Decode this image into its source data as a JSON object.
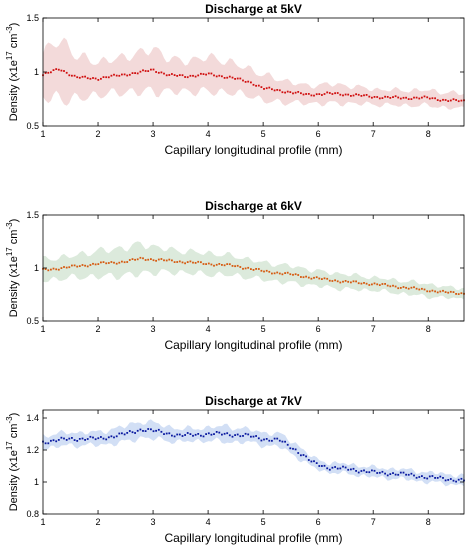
{
  "chart_data": [
    {
      "type": "line",
      "title": "Discharge at 5kV",
      "xlabel": "Capillary longitudinal profile (mm)",
      "ylabel": {
        "base": "Density (x1e",
        "exp1": "17",
        "mid": " cm",
        "exp2": "-3",
        "end": ")"
      },
      "xlim": [
        1,
        8.65
      ],
      "ylim": [
        0.5,
        1.5
      ],
      "xticks": [
        "1",
        "2",
        "3",
        "4",
        "5",
        "6",
        "7",
        "8"
      ],
      "yticks": [
        "0.5",
        "1",
        "1.5"
      ],
      "series": [
        {
          "line_color": "#d01010",
          "band_color": "#f2d6d6",
          "x": [
            1.0,
            1.3,
            1.6,
            2.0,
            2.4,
            2.8,
            3.0,
            3.3,
            3.6,
            4.0,
            4.4,
            4.8,
            5.0,
            5.4,
            5.8,
            6.2,
            6.6,
            7.0,
            7.5,
            8.0,
            8.3,
            8.65
          ],
          "y": [
            0.97,
            1.03,
            0.95,
            0.94,
            0.97,
            1.0,
            1.02,
            0.97,
            0.96,
            0.98,
            0.95,
            0.9,
            0.85,
            0.82,
            0.79,
            0.8,
            0.79,
            0.77,
            0.76,
            0.76,
            0.74,
            0.73
          ],
          "band_half_width": [
            0.2,
            0.28,
            0.2,
            0.15,
            0.16,
            0.18,
            0.2,
            0.15,
            0.14,
            0.16,
            0.14,
            0.12,
            0.12,
            0.1,
            0.08,
            0.09,
            0.08,
            0.07,
            0.07,
            0.07,
            0.07,
            0.07
          ]
        }
      ]
    },
    {
      "type": "line",
      "title": "Discharge at 6kV",
      "xlabel": "Capillary longitudinal profile (mm)",
      "ylabel": {
        "base": "Density (x1e",
        "exp1": "17",
        "mid": " cm",
        "exp2": "-3",
        "end": ")"
      },
      "xlim": [
        1,
        8.65
      ],
      "ylim": [
        0.5,
        1.5
      ],
      "xticks": [
        "1",
        "2",
        "3",
        "4",
        "5",
        "6",
        "7",
        "8"
      ],
      "yticks": [
        "0.5",
        "1",
        "1.5"
      ],
      "series": [
        {
          "line_color": "#d65a10",
          "band_color": "#d8e8d8",
          "x": [
            1.0,
            1.5,
            2.0,
            2.5,
            2.8,
            3.0,
            3.5,
            4.0,
            4.5,
            5.0,
            5.5,
            6.0,
            6.5,
            7.0,
            7.5,
            8.0,
            8.3,
            8.65
          ],
          "y": [
            0.98,
            1.01,
            1.04,
            1.06,
            1.09,
            1.08,
            1.06,
            1.04,
            1.02,
            0.97,
            0.94,
            0.9,
            0.87,
            0.85,
            0.82,
            0.79,
            0.77,
            0.76
          ],
          "band_half_width": [
            0.1,
            0.1,
            0.12,
            0.13,
            0.14,
            0.12,
            0.1,
            0.1,
            0.09,
            0.08,
            0.08,
            0.07,
            0.07,
            0.06,
            0.06,
            0.06,
            0.05,
            0.05
          ]
        }
      ]
    },
    {
      "type": "line",
      "title": "Discharge at 7kV",
      "xlabel": "Capillary longitudinal profile (mm)",
      "ylabel": {
        "base": "Density (x1e",
        "exp1": "17",
        "mid": " cm",
        "exp2": "-3",
        "end": ")"
      },
      "xlim": [
        1,
        8.65
      ],
      "ylim": [
        0.8,
        1.45
      ],
      "xticks": [
        "1",
        "2",
        "3",
        "4",
        "5",
        "6",
        "7",
        "8"
      ],
      "yticks": [
        "0.8",
        "1",
        "1.2",
        "1.4"
      ],
      "series": [
        {
          "line_color": "#0a1aa0",
          "band_color": "#cddcf4",
          "x": [
            1.0,
            1.5,
            2.0,
            2.5,
            2.8,
            3.0,
            3.5,
            4.0,
            4.3,
            4.7,
            5.0,
            5.3,
            5.6,
            5.9,
            6.2,
            6.6,
            7.0,
            7.5,
            8.0,
            8.3,
            8.65
          ],
          "y": [
            1.25,
            1.27,
            1.27,
            1.3,
            1.33,
            1.32,
            1.29,
            1.3,
            1.3,
            1.29,
            1.27,
            1.26,
            1.2,
            1.12,
            1.09,
            1.08,
            1.06,
            1.05,
            1.03,
            1.02,
            1.01
          ],
          "band_half_width": [
            0.04,
            0.04,
            0.04,
            0.05,
            0.05,
            0.05,
            0.04,
            0.04,
            0.05,
            0.04,
            0.04,
            0.04,
            0.04,
            0.03,
            0.03,
            0.03,
            0.03,
            0.03,
            0.03,
            0.03,
            0.03
          ]
        }
      ]
    }
  ]
}
